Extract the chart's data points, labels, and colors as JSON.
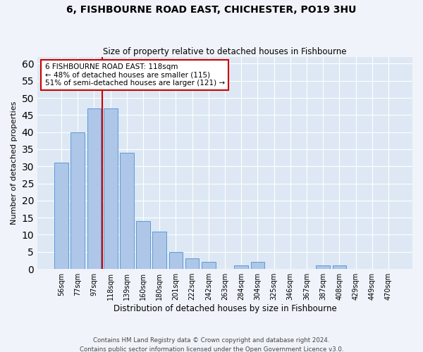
{
  "title1": "6, FISHBOURNE ROAD EAST, CHICHESTER, PO19 3HU",
  "title2": "Size of property relative to detached houses in Fishbourne",
  "xlabel": "Distribution of detached houses by size in Fishbourne",
  "ylabel": "Number of detached properties",
  "bar_labels": [
    "56sqm",
    "77sqm",
    "97sqm",
    "118sqm",
    "139sqm",
    "160sqm",
    "180sqm",
    "201sqm",
    "222sqm",
    "242sqm",
    "263sqm",
    "284sqm",
    "304sqm",
    "325sqm",
    "346sqm",
    "367sqm",
    "387sqm",
    "408sqm",
    "429sqm",
    "449sqm",
    "470sqm"
  ],
  "bar_values": [
    31,
    40,
    47,
    47,
    34,
    14,
    11,
    5,
    3,
    2,
    0,
    1,
    2,
    0,
    0,
    0,
    1,
    1,
    0,
    0,
    0
  ],
  "bar_color": "#aec6e8",
  "bar_edgecolor": "#5b9bd5",
  "annotation_line1": "6 FISHBOURNE ROAD EAST: 118sqm",
  "annotation_line2": "← 48% of detached houses are smaller (115)",
  "annotation_line3": "51% of semi-detached houses are larger (121) →",
  "annotation_box_color": "#ffffff",
  "annotation_box_edgecolor": "#cc0000",
  "vline_color": "#cc0000",
  "ylim": [
    0,
    62
  ],
  "yticks": [
    0,
    5,
    10,
    15,
    20,
    25,
    30,
    35,
    40,
    45,
    50,
    55,
    60
  ],
  "background_color": "#dde8f4",
  "grid_color": "#ffffff",
  "fig_facecolor": "#f0f4fa",
  "footer1": "Contains HM Land Registry data © Crown copyright and database right 2024.",
  "footer2": "Contains public sector information licensed under the Open Government Licence v3.0."
}
